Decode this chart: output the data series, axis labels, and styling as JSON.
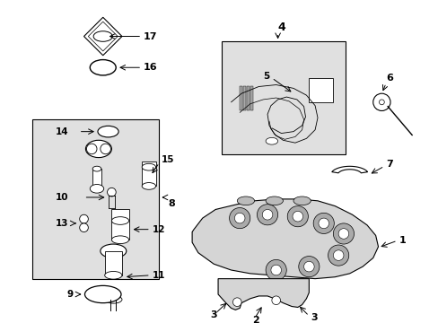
{
  "bg": "#ffffff",
  "lc": "#000000",
  "box_fill": "#e0e0e0",
  "part_fill": "#cccccc",
  "fig_w": 4.89,
  "fig_h": 3.6,
  "dpi": 100,
  "xlim": [
    0,
    489
  ],
  "ylim": [
    0,
    360
  ]
}
